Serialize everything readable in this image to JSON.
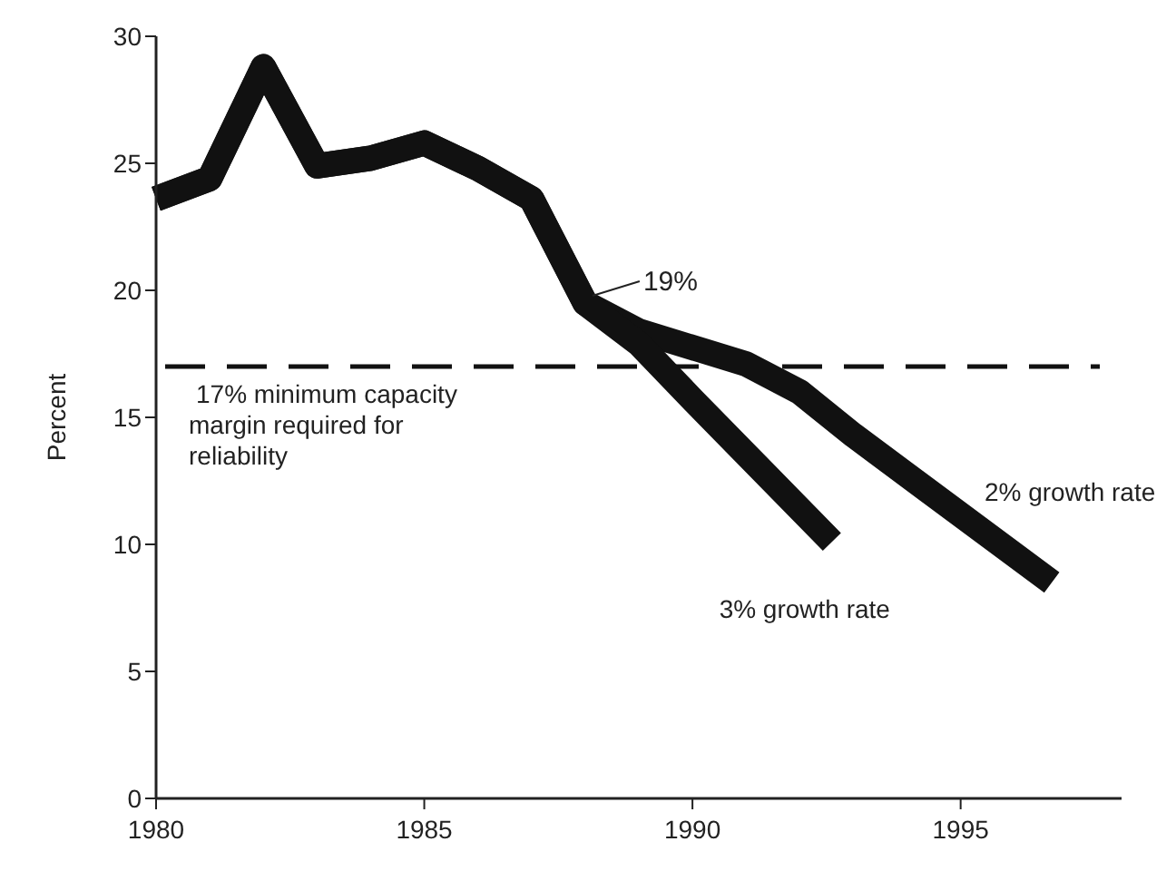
{
  "chart_data": {
    "type": "line",
    "ylabel": "Percent",
    "xlim": [
      1980,
      1998
    ],
    "xticks": [
      1980,
      1985,
      1990,
      1995
    ],
    "ylim": [
      0,
      30
    ],
    "yticks": [
      0,
      5,
      10,
      15,
      20,
      25,
      30
    ],
    "grid": false,
    "marker": "none",
    "line_style": "solid",
    "series": [
      {
        "name": "2% growth rate",
        "color": "#111111",
        "x": [
          1980,
          1981,
          1982,
          1983,
          1984,
          1985,
          1986,
          1987,
          1988,
          1989,
          1991,
          1992,
          1993,
          1996.7
        ],
        "values": [
          23.6,
          24.4,
          28.8,
          24.9,
          25.2,
          25.8,
          24.8,
          23.6,
          19.5,
          18.4,
          17.1,
          16.0,
          14.3,
          8.5
        ]
      },
      {
        "name": "3% growth rate",
        "color": "#111111",
        "x": [
          1980,
          1981,
          1982,
          1983,
          1984,
          1985,
          1986,
          1987,
          1988,
          1989,
          1990,
          1992.6
        ],
        "values": [
          23.6,
          24.4,
          28.8,
          24.9,
          25.2,
          25.8,
          24.8,
          23.6,
          19.5,
          17.9,
          15.7,
          10.1
        ]
      }
    ],
    "ref_lines": [
      {
        "axis": "y",
        "value": 17,
        "label": "17% minimum capacity margin required for reliability",
        "color": "#111111",
        "line_style": "dashed"
      }
    ],
    "annotations": [
      {
        "text": "19%",
        "x": 1988,
        "y": 19.5
      }
    ]
  }
}
